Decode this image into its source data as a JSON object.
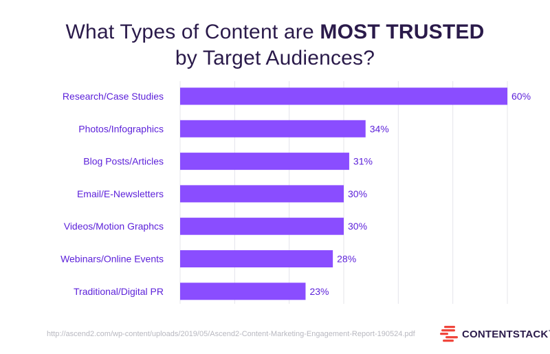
{
  "title": {
    "line1_prefix": "What Types of Content are ",
    "line1_bold": "MOST TRUSTED",
    "line2": "by Target Audiences?"
  },
  "chart_data": {
    "type": "bar",
    "orientation": "horizontal",
    "categories": [
      "Research/Case Studies",
      "Photos/Infographics",
      "Blog Posts/Articles",
      "Email/E-Newsletters",
      "Videos/Motion Graphcs",
      "Webinars/Online Events",
      "Traditional/Digital PR"
    ],
    "values": [
      60,
      34,
      31,
      30,
      30,
      28,
      23
    ],
    "value_labels": [
      "60%",
      "34%",
      "31%",
      "30%",
      "30%",
      "28%",
      "23%"
    ],
    "xlim": [
      0,
      60
    ],
    "grid": true,
    "bar_color": "#8a4dff",
    "label_color": "#5b1fd9"
  },
  "footer": {
    "url": "http://ascend2.com/wp-content/uploads/2019/05/Ascend2-Content-Marketing-Engagement-Report-190524.pdf",
    "logo_text": "CONTENTSTACK",
    "logo_tm": "™",
    "logo_icon": "contentstack-logo-icon",
    "logo_color": "#f0463c"
  }
}
